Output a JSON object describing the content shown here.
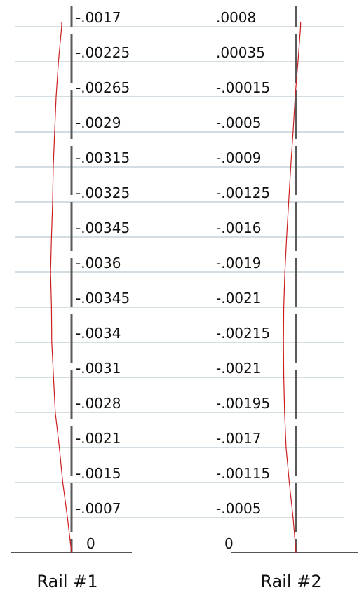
{
  "colors": {
    "rail": "#5a5a5a",
    "grid": "#a9bcc6",
    "deflection": "#cc1f1f",
    "ground": "#555555",
    "text": "#111111"
  },
  "rails": [
    {
      "label": "Rail #1",
      "values": [
        "-.0017",
        "-.00225",
        "-.00265",
        "-.0029",
        "-.00315",
        "-.00325",
        "-.00345",
        "-.0036",
        "-.00345",
        "-.0034",
        "-.0031",
        "-.0028",
        "-.0021",
        "-.0015",
        "-.0007",
        "0"
      ]
    },
    {
      "label": "Rail #2",
      "values": [
        ".0008",
        ".00035",
        "-.00015",
        "-.0005",
        "-.0009",
        "-.00125",
        "-.0016",
        "-.0019",
        "-.0021",
        "-.00215",
        "-.0021",
        "-.00195",
        "-.0017",
        "-.00115",
        "-.0005",
        "0"
      ]
    }
  ]
}
